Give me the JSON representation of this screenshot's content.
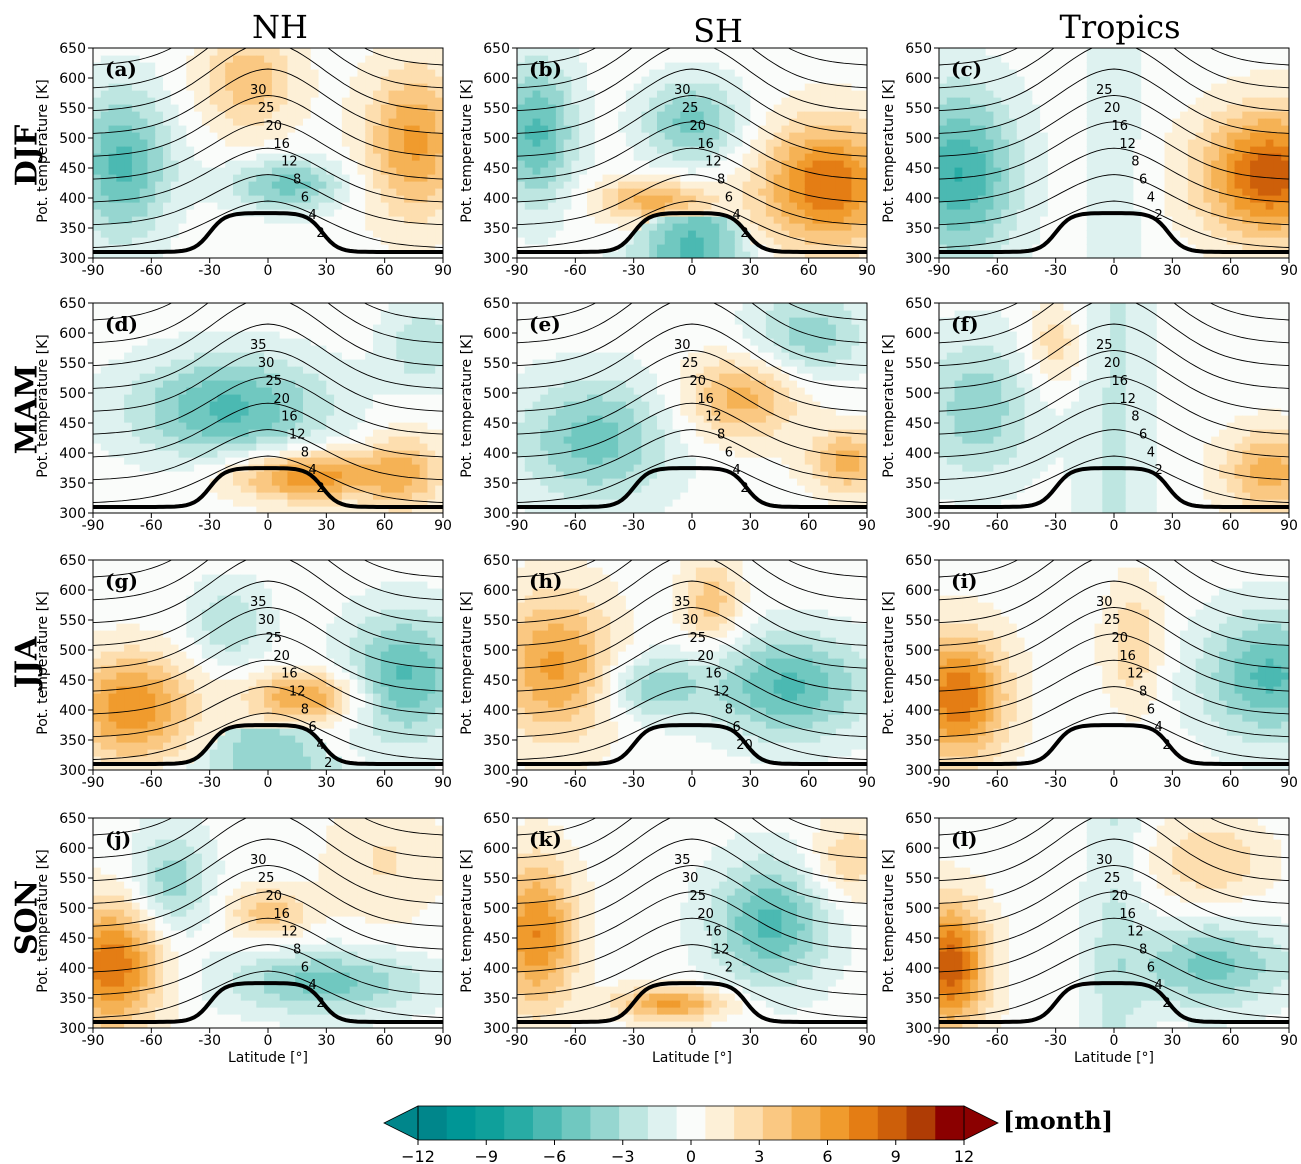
{
  "columns": [
    "NH",
    "SH",
    "Tropics"
  ],
  "rows": [
    "DJF",
    "MAM",
    "JJA",
    "SON"
  ],
  "axis_label_y": "Pot. temperature [K]",
  "axis_label_x": "Latitude [°]",
  "colorbar": {
    "unit": "[month]",
    "tick_labels": [
      "−12",
      "−9",
      "−6",
      "−3",
      "0",
      "3",
      "6",
      "9",
      "12"
    ],
    "range": [
      -12,
      12
    ],
    "low_color": "#00868b",
    "high_color": "#8b0000"
  },
  "chart_data": [
    {
      "id": "a",
      "label": "(a)",
      "region": "NH",
      "season": "DJF",
      "type": "heatmap",
      "xlim": [
        -90,
        90
      ],
      "ylim": [
        300,
        650
      ],
      "x_ticks": [
        "-90",
        "-60",
        "-30",
        "0",
        "30",
        "60",
        "90"
      ],
      "y_ticks": [
        "300",
        "350",
        "400",
        "450",
        "500",
        "550",
        "600",
        "650"
      ],
      "contour_labels": [
        "30",
        "25",
        "20",
        "16",
        "12",
        "8",
        "6",
        "4",
        "2"
      ]
    },
    {
      "id": "b",
      "label": "(b)",
      "region": "SH",
      "season": "DJF",
      "type": "heatmap",
      "xlim": [
        -90,
        90
      ],
      "ylim": [
        300,
        650
      ],
      "x_ticks": [
        "-90",
        "-60",
        "-30",
        "0",
        "30",
        "60",
        "90"
      ],
      "y_ticks": [
        "300",
        "350",
        "400",
        "450",
        "500",
        "550",
        "600",
        "650"
      ],
      "contour_labels": [
        "30",
        "25",
        "20",
        "16",
        "12",
        "8",
        "6",
        "4",
        "2"
      ]
    },
    {
      "id": "c",
      "label": "(c)",
      "region": "Tropics",
      "season": "DJF",
      "type": "heatmap",
      "xlim": [
        -90,
        90
      ],
      "ylim": [
        300,
        650
      ],
      "x_ticks": [
        "-90",
        "-60",
        "-30",
        "0",
        "30",
        "60",
        "90"
      ],
      "y_ticks": [
        "300",
        "350",
        "400",
        "450",
        "500",
        "550",
        "600",
        "650"
      ],
      "contour_labels": [
        "25",
        "20",
        "16",
        "12",
        "8",
        "6",
        "4",
        "2"
      ]
    },
    {
      "id": "d",
      "label": "(d)",
      "region": "NH",
      "season": "MAM",
      "type": "heatmap",
      "xlim": [
        -90,
        90
      ],
      "ylim": [
        300,
        650
      ],
      "x_ticks": [
        "-90",
        "-60",
        "-30",
        "0",
        "30",
        "60",
        "90"
      ],
      "y_ticks": [
        "300",
        "350",
        "400",
        "450",
        "500",
        "550",
        "600",
        "650"
      ],
      "contour_labels": [
        "35",
        "30",
        "25",
        "20",
        "16",
        "12",
        "8",
        "4",
        "2"
      ]
    },
    {
      "id": "e",
      "label": "(e)",
      "region": "SH",
      "season": "MAM",
      "type": "heatmap",
      "xlim": [
        -90,
        90
      ],
      "ylim": [
        300,
        650
      ],
      "x_ticks": [
        "-90",
        "-60",
        "-30",
        "0",
        "30",
        "60",
        "90"
      ],
      "y_ticks": [
        "300",
        "350",
        "400",
        "450",
        "500",
        "550",
        "600",
        "650"
      ],
      "contour_labels": [
        "30",
        "25",
        "20",
        "16",
        "12",
        "8",
        "6",
        "4",
        "2"
      ]
    },
    {
      "id": "f",
      "label": "(f)",
      "region": "Tropics",
      "season": "MAM",
      "type": "heatmap",
      "xlim": [
        -90,
        90
      ],
      "ylim": [
        300,
        650
      ],
      "x_ticks": [
        "-90",
        "-60",
        "-30",
        "0",
        "30",
        "60",
        "90"
      ],
      "y_ticks": [
        "300",
        "350",
        "400",
        "450",
        "500",
        "550",
        "600",
        "650"
      ],
      "contour_labels": [
        "25",
        "20",
        "16",
        "12",
        "8",
        "6",
        "4",
        "2"
      ]
    },
    {
      "id": "g",
      "label": "(g)",
      "region": "NH",
      "season": "JJA",
      "type": "heatmap",
      "xlim": [
        -90,
        90
      ],
      "ylim": [
        300,
        650
      ],
      "x_ticks": [
        "-90",
        "-60",
        "-30",
        "0",
        "30",
        "60",
        "90"
      ],
      "y_ticks": [
        "300",
        "350",
        "400",
        "450",
        "500",
        "550",
        "600",
        "650"
      ],
      "contour_labels": [
        "35",
        "30",
        "25",
        "20",
        "16",
        "12",
        "8",
        "6",
        "4",
        "2"
      ]
    },
    {
      "id": "h",
      "label": "(h)",
      "region": "SH",
      "season": "JJA",
      "type": "heatmap",
      "xlim": [
        -90,
        90
      ],
      "ylim": [
        300,
        650
      ],
      "x_ticks": [
        "-90",
        "-60",
        "-30",
        "0",
        "30",
        "60",
        "90"
      ],
      "y_ticks": [
        "300",
        "350",
        "400",
        "450",
        "500",
        "550",
        "600",
        "650"
      ],
      "contour_labels": [
        "35",
        "30",
        "25",
        "20",
        "16",
        "12",
        "8",
        "6",
        "20"
      ]
    },
    {
      "id": "i",
      "label": "(i)",
      "region": "Tropics",
      "season": "JJA",
      "type": "heatmap",
      "xlim": [
        -90,
        90
      ],
      "ylim": [
        300,
        650
      ],
      "x_ticks": [
        "-90",
        "-60",
        "-30",
        "0",
        "30",
        "60",
        "90"
      ],
      "y_ticks": [
        "300",
        "350",
        "400",
        "450",
        "500",
        "550",
        "600",
        "650"
      ],
      "contour_labels": [
        "30",
        "25",
        "20",
        "16",
        "12",
        "8",
        "6",
        "4",
        "2"
      ]
    },
    {
      "id": "j",
      "label": "(j)",
      "region": "NH",
      "season": "SON",
      "type": "heatmap",
      "xlim": [
        -90,
        90
      ],
      "ylim": [
        300,
        650
      ],
      "x_ticks": [
        "-90",
        "-60",
        "-30",
        "0",
        "30",
        "60",
        "90"
      ],
      "y_ticks": [
        "300",
        "350",
        "400",
        "450",
        "500",
        "550",
        "600",
        "650"
      ],
      "contour_labels": [
        "30",
        "25",
        "20",
        "16",
        "12",
        "8",
        "6",
        "4",
        "2"
      ]
    },
    {
      "id": "k",
      "label": "(k)",
      "region": "SH",
      "season": "SON",
      "type": "heatmap",
      "xlim": [
        -90,
        90
      ],
      "ylim": [
        300,
        650
      ],
      "x_ticks": [
        "-90",
        "-60",
        "-30",
        "0",
        "30",
        "60",
        "90"
      ],
      "y_ticks": [
        "300",
        "350",
        "400",
        "450",
        "500",
        "550",
        "600",
        "650"
      ],
      "contour_labels": [
        "35",
        "30",
        "25",
        "20",
        "16",
        "12",
        "2"
      ]
    },
    {
      "id": "l",
      "label": "(l)",
      "region": "Tropics",
      "season": "SON",
      "type": "heatmap",
      "xlim": [
        -90,
        90
      ],
      "ylim": [
        300,
        650
      ],
      "x_ticks": [
        "-90",
        "-60",
        "-30",
        "0",
        "30",
        "60",
        "90"
      ],
      "y_ticks": [
        "300",
        "350",
        "400",
        "450",
        "500",
        "550",
        "600",
        "650"
      ],
      "contour_labels": [
        "30",
        "25",
        "20",
        "16",
        "12",
        "8",
        "6",
        "4",
        "2"
      ]
    }
  ]
}
